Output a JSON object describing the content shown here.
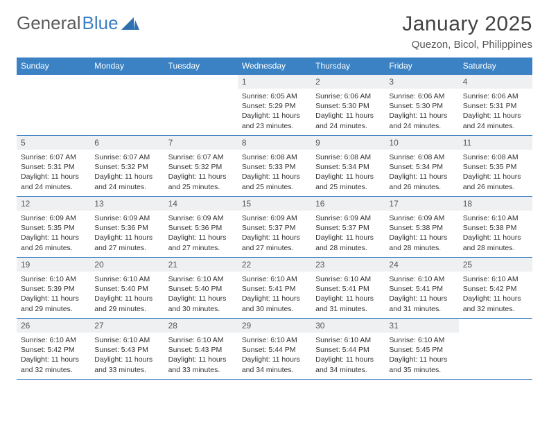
{
  "brand": {
    "word1": "General",
    "word2": "Blue"
  },
  "title": "January 2025",
  "location": "Quezon, Bicol, Philippines",
  "colors": {
    "header_bg": "#3b82c4",
    "header_text": "#ffffff",
    "border": "#3b7fc4",
    "daynum_bg": "#eef0f2",
    "text": "#333333",
    "logo_gray": "#5a5a5a",
    "logo_blue": "#3b7fc4"
  },
  "day_headers": [
    "Sunday",
    "Monday",
    "Tuesday",
    "Wednesday",
    "Thursday",
    "Friday",
    "Saturday"
  ],
  "weeks": [
    [
      {
        "n": "",
        "lines": []
      },
      {
        "n": "",
        "lines": []
      },
      {
        "n": "",
        "lines": []
      },
      {
        "n": "1",
        "lines": [
          "Sunrise: 6:05 AM",
          "Sunset: 5:29 PM",
          "Daylight: 11 hours",
          "and 23 minutes."
        ]
      },
      {
        "n": "2",
        "lines": [
          "Sunrise: 6:06 AM",
          "Sunset: 5:30 PM",
          "Daylight: 11 hours",
          "and 24 minutes."
        ]
      },
      {
        "n": "3",
        "lines": [
          "Sunrise: 6:06 AM",
          "Sunset: 5:30 PM",
          "Daylight: 11 hours",
          "and 24 minutes."
        ]
      },
      {
        "n": "4",
        "lines": [
          "Sunrise: 6:06 AM",
          "Sunset: 5:31 PM",
          "Daylight: 11 hours",
          "and 24 minutes."
        ]
      }
    ],
    [
      {
        "n": "5",
        "lines": [
          "Sunrise: 6:07 AM",
          "Sunset: 5:31 PM",
          "Daylight: 11 hours",
          "and 24 minutes."
        ]
      },
      {
        "n": "6",
        "lines": [
          "Sunrise: 6:07 AM",
          "Sunset: 5:32 PM",
          "Daylight: 11 hours",
          "and 24 minutes."
        ]
      },
      {
        "n": "7",
        "lines": [
          "Sunrise: 6:07 AM",
          "Sunset: 5:32 PM",
          "Daylight: 11 hours",
          "and 25 minutes."
        ]
      },
      {
        "n": "8",
        "lines": [
          "Sunrise: 6:08 AM",
          "Sunset: 5:33 PM",
          "Daylight: 11 hours",
          "and 25 minutes."
        ]
      },
      {
        "n": "9",
        "lines": [
          "Sunrise: 6:08 AM",
          "Sunset: 5:34 PM",
          "Daylight: 11 hours",
          "and 25 minutes."
        ]
      },
      {
        "n": "10",
        "lines": [
          "Sunrise: 6:08 AM",
          "Sunset: 5:34 PM",
          "Daylight: 11 hours",
          "and 26 minutes."
        ]
      },
      {
        "n": "11",
        "lines": [
          "Sunrise: 6:08 AM",
          "Sunset: 5:35 PM",
          "Daylight: 11 hours",
          "and 26 minutes."
        ]
      }
    ],
    [
      {
        "n": "12",
        "lines": [
          "Sunrise: 6:09 AM",
          "Sunset: 5:35 PM",
          "Daylight: 11 hours",
          "and 26 minutes."
        ]
      },
      {
        "n": "13",
        "lines": [
          "Sunrise: 6:09 AM",
          "Sunset: 5:36 PM",
          "Daylight: 11 hours",
          "and 27 minutes."
        ]
      },
      {
        "n": "14",
        "lines": [
          "Sunrise: 6:09 AM",
          "Sunset: 5:36 PM",
          "Daylight: 11 hours",
          "and 27 minutes."
        ]
      },
      {
        "n": "15",
        "lines": [
          "Sunrise: 6:09 AM",
          "Sunset: 5:37 PM",
          "Daylight: 11 hours",
          "and 27 minutes."
        ]
      },
      {
        "n": "16",
        "lines": [
          "Sunrise: 6:09 AM",
          "Sunset: 5:37 PM",
          "Daylight: 11 hours",
          "and 28 minutes."
        ]
      },
      {
        "n": "17",
        "lines": [
          "Sunrise: 6:09 AM",
          "Sunset: 5:38 PM",
          "Daylight: 11 hours",
          "and 28 minutes."
        ]
      },
      {
        "n": "18",
        "lines": [
          "Sunrise: 6:10 AM",
          "Sunset: 5:38 PM",
          "Daylight: 11 hours",
          "and 28 minutes."
        ]
      }
    ],
    [
      {
        "n": "19",
        "lines": [
          "Sunrise: 6:10 AM",
          "Sunset: 5:39 PM",
          "Daylight: 11 hours",
          "and 29 minutes."
        ]
      },
      {
        "n": "20",
        "lines": [
          "Sunrise: 6:10 AM",
          "Sunset: 5:40 PM",
          "Daylight: 11 hours",
          "and 29 minutes."
        ]
      },
      {
        "n": "21",
        "lines": [
          "Sunrise: 6:10 AM",
          "Sunset: 5:40 PM",
          "Daylight: 11 hours",
          "and 30 minutes."
        ]
      },
      {
        "n": "22",
        "lines": [
          "Sunrise: 6:10 AM",
          "Sunset: 5:41 PM",
          "Daylight: 11 hours",
          "and 30 minutes."
        ]
      },
      {
        "n": "23",
        "lines": [
          "Sunrise: 6:10 AM",
          "Sunset: 5:41 PM",
          "Daylight: 11 hours",
          "and 31 minutes."
        ]
      },
      {
        "n": "24",
        "lines": [
          "Sunrise: 6:10 AM",
          "Sunset: 5:41 PM",
          "Daylight: 11 hours",
          "and 31 minutes."
        ]
      },
      {
        "n": "25",
        "lines": [
          "Sunrise: 6:10 AM",
          "Sunset: 5:42 PM",
          "Daylight: 11 hours",
          "and 32 minutes."
        ]
      }
    ],
    [
      {
        "n": "26",
        "lines": [
          "Sunrise: 6:10 AM",
          "Sunset: 5:42 PM",
          "Daylight: 11 hours",
          "and 32 minutes."
        ]
      },
      {
        "n": "27",
        "lines": [
          "Sunrise: 6:10 AM",
          "Sunset: 5:43 PM",
          "Daylight: 11 hours",
          "and 33 minutes."
        ]
      },
      {
        "n": "28",
        "lines": [
          "Sunrise: 6:10 AM",
          "Sunset: 5:43 PM",
          "Daylight: 11 hours",
          "and 33 minutes."
        ]
      },
      {
        "n": "29",
        "lines": [
          "Sunrise: 6:10 AM",
          "Sunset: 5:44 PM",
          "Daylight: 11 hours",
          "and 34 minutes."
        ]
      },
      {
        "n": "30",
        "lines": [
          "Sunrise: 6:10 AM",
          "Sunset: 5:44 PM",
          "Daylight: 11 hours",
          "and 34 minutes."
        ]
      },
      {
        "n": "31",
        "lines": [
          "Sunrise: 6:10 AM",
          "Sunset: 5:45 PM",
          "Daylight: 11 hours",
          "and 35 minutes."
        ]
      },
      {
        "n": "",
        "lines": []
      }
    ]
  ]
}
